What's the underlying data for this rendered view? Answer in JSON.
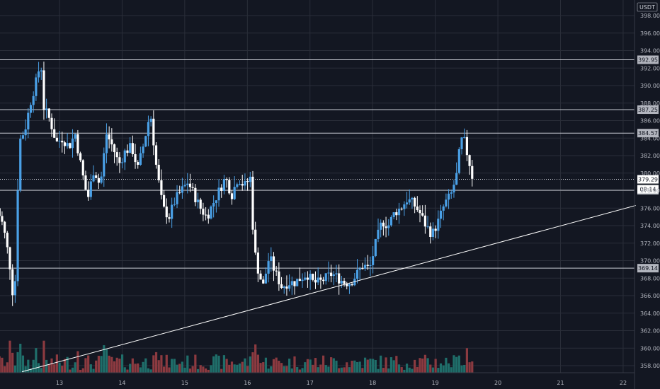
{
  "chart_data": {
    "type": "candlestick",
    "currency": "USDT",
    "ylim": [
      357,
      399.5
    ],
    "y_ticks": [
      "358.00",
      "360.00",
      "362.00",
      "364.00",
      "366.00",
      "368.00",
      "370.00",
      "372.00",
      "374.00",
      "376.00",
      "378.00",
      "380.00",
      "382.00",
      "384.00",
      "386.00",
      "388.00",
      "390.00",
      "392.00",
      "394.00",
      "396.00",
      "398.00"
    ],
    "x_tick_labels": [
      "13",
      "14",
      "15",
      "16",
      "17",
      "18",
      "19",
      "20",
      "21",
      "22"
    ],
    "horizontal_levels": [
      {
        "label": "392.95",
        "value": 392.95
      },
      {
        "label": "387.25",
        "value": 387.25
      },
      {
        "label": "384.57",
        "value": 384.57
      },
      {
        "label": "378.04",
        "value": 378.04
      },
      {
        "label": "369.14",
        "value": 369.14
      }
    ],
    "trendline": {
      "from": {
        "day": 12.4,
        "price": 357.3
      },
      "to": {
        "day": 22.2,
        "price": 376.3
      }
    },
    "current_price": {
      "label": "379.29",
      "value": 379.29,
      "countdown": "08:14"
    },
    "candle_pattern": {
      "first_candle_day": 12.0,
      "candle_interval_days": 0.0417,
      "bull_color": "#4aa0e6",
      "bear_color": "#ffffff",
      "vol_up_color": "#1f6e6a",
      "vol_down_color": "#8c3a40"
    },
    "anchors": [
      [
        12.0,
        376.0
      ],
      [
        12.1,
        374.0
      ],
      [
        12.2,
        370.0
      ],
      [
        12.25,
        366.5
      ],
      [
        12.3,
        368.0
      ],
      [
        12.35,
        383.5
      ],
      [
        12.45,
        385.0
      ],
      [
        12.55,
        388.5
      ],
      [
        12.65,
        391.0
      ],
      [
        12.7,
        393.0
      ],
      [
        12.75,
        387.5
      ],
      [
        12.85,
        386.0
      ],
      [
        12.95,
        383.5
      ],
      [
        13.05,
        384.0
      ],
      [
        13.15,
        383.0
      ],
      [
        13.25,
        384.5
      ],
      [
        13.35,
        380.5
      ],
      [
        13.45,
        377.0
      ],
      [
        13.55,
        380.5
      ],
      [
        13.65,
        378.5
      ],
      [
        13.75,
        384.5
      ],
      [
        13.85,
        383.0
      ],
      [
        13.95,
        381.0
      ],
      [
        14.05,
        382.5
      ],
      [
        14.15,
        383.0
      ],
      [
        14.25,
        380.5
      ],
      [
        14.35,
        383.5
      ],
      [
        14.45,
        387.0
      ],
      [
        14.55,
        380.5
      ],
      [
        14.65,
        376.0
      ],
      [
        14.75,
        375.0
      ],
      [
        14.85,
        377.0
      ],
      [
        14.95,
        378.0
      ],
      [
        15.05,
        379.0
      ],
      [
        15.15,
        377.5
      ],
      [
        15.25,
        376.0
      ],
      [
        15.35,
        375.0
      ],
      [
        15.45,
        376.5
      ],
      [
        15.55,
        378.0
      ],
      [
        15.65,
        379.5
      ],
      [
        15.75,
        377.5
      ],
      [
        15.85,
        379.5
      ],
      [
        15.95,
        378.5
      ],
      [
        16.05,
        379.5
      ],
      [
        16.1,
        372.0
      ],
      [
        16.15,
        369.5
      ],
      [
        16.25,
        367.0
      ],
      [
        16.35,
        370.5
      ],
      [
        16.45,
        368.5
      ],
      [
        16.55,
        367.0
      ],
      [
        16.65,
        367.5
      ],
      [
        16.75,
        367.5
      ],
      [
        16.85,
        368.0
      ],
      [
        16.95,
        368.5
      ],
      [
        17.05,
        367.5
      ],
      [
        17.15,
        367.5
      ],
      [
        17.25,
        368.0
      ],
      [
        17.35,
        368.5
      ],
      [
        17.45,
        368.0
      ],
      [
        17.55,
        367.5
      ],
      [
        17.65,
        367.5
      ],
      [
        17.75,
        368.5
      ],
      [
        17.85,
        369.5
      ],
      [
        17.95,
        369.0
      ],
      [
        18.05,
        372.0
      ],
      [
        18.15,
        374.5
      ],
      [
        18.25,
        374.0
      ],
      [
        18.35,
        375.5
      ],
      [
        18.45,
        376.0
      ],
      [
        18.55,
        377.0
      ],
      [
        18.65,
        376.5
      ],
      [
        18.75,
        375.5
      ],
      [
        18.85,
        374.0
      ],
      [
        18.95,
        373.0
      ],
      [
        19.05,
        374.5
      ],
      [
        19.15,
        376.5
      ],
      [
        19.25,
        377.5
      ],
      [
        19.35,
        380.0
      ],
      [
        19.4,
        383.5
      ],
      [
        19.45,
        384.0
      ],
      [
        19.5,
        382.5
      ],
      [
        19.55,
        381.0
      ],
      [
        19.6,
        379.3
      ]
    ]
  }
}
